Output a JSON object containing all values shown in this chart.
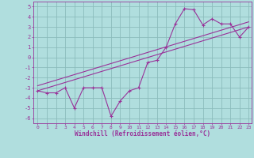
{
  "xlabel": "Windchill (Refroidissement éolien,°C)",
  "background_color": "#b0dede",
  "grid_color": "#8bbcbc",
  "line_color": "#993399",
  "xlim_min": -0.5,
  "xlim_max": 23.3,
  "ylim_min": -6.5,
  "ylim_max": 5.5,
  "yticks": [
    -6,
    -5,
    -4,
    -3,
    -2,
    -1,
    0,
    1,
    2,
    3,
    4,
    5
  ],
  "xticks": [
    0,
    1,
    2,
    3,
    4,
    5,
    6,
    7,
    8,
    9,
    10,
    11,
    12,
    13,
    14,
    15,
    16,
    17,
    18,
    19,
    20,
    21,
    22,
    23
  ],
  "hours": [
    0,
    1,
    2,
    3,
    4,
    5,
    6,
    7,
    8,
    9,
    10,
    11,
    12,
    13,
    14,
    15,
    16,
    17,
    18,
    19,
    20,
    21,
    22,
    23
  ],
  "windchill_y": [
    -3.3,
    -3.5,
    -3.5,
    -3.0,
    -5.0,
    -3.0,
    -3.0,
    -3.0,
    -5.8,
    -4.3,
    -3.3,
    -3.0,
    -0.5,
    -0.3,
    1.0,
    3.3,
    4.8,
    4.7,
    3.2,
    3.8,
    3.3,
    3.3,
    2.0,
    3.0
  ],
  "trend1_x": [
    0,
    23
  ],
  "trend1_y": [
    -3.3,
    3.0
  ],
  "trend2_x": [
    0,
    23
  ],
  "trend2_y": [
    -2.8,
    3.5
  ]
}
